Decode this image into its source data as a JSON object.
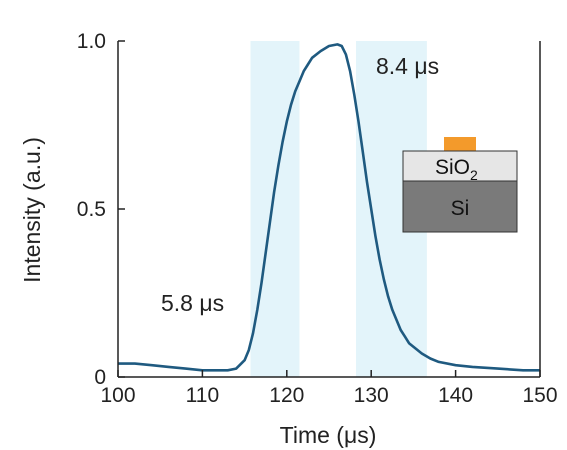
{
  "chart_data": {
    "type": "line",
    "title": "",
    "xlabel": "Time (μs)",
    "ylabel": "Intensity (a.u.)",
    "xlim": [
      100,
      150
    ],
    "ylim": [
      0,
      1.0
    ],
    "xticks": [
      100,
      110,
      120,
      130,
      140,
      150
    ],
    "xtick_labels": [
      "100",
      "110",
      "120",
      "130",
      "140",
      "150"
    ],
    "yticks": [
      0,
      0.5,
      1.0
    ],
    "ytick_labels": [
      "0",
      "0.5",
      "1.0"
    ],
    "grid": false,
    "legend": "none",
    "series": [
      {
        "color": "#1f5a80",
        "x": [
          100,
          102,
          104,
          106,
          108,
          110,
          112,
          113,
          114,
          115,
          115.5,
          116,
          116.5,
          117,
          117.5,
          118,
          118.5,
          119,
          119.5,
          120,
          120.5,
          121,
          121.5,
          122,
          122.5,
          123,
          124,
          125,
          126,
          126.5,
          127,
          127.5,
          128,
          128.5,
          129,
          129.5,
          130,
          130.5,
          131,
          131.5,
          132,
          132.5,
          133,
          133.5,
          134,
          134.5,
          135,
          136,
          137,
          138,
          140,
          142,
          145,
          148,
          150
        ],
        "y": [
          0.04,
          0.04,
          0.035,
          0.03,
          0.025,
          0.02,
          0.02,
          0.02,
          0.025,
          0.05,
          0.08,
          0.13,
          0.2,
          0.28,
          0.37,
          0.46,
          0.55,
          0.63,
          0.7,
          0.76,
          0.81,
          0.85,
          0.88,
          0.91,
          0.93,
          0.95,
          0.97,
          0.985,
          0.99,
          0.985,
          0.96,
          0.91,
          0.84,
          0.76,
          0.67,
          0.58,
          0.5,
          0.42,
          0.35,
          0.29,
          0.24,
          0.2,
          0.17,
          0.14,
          0.12,
          0.1,
          0.09,
          0.07,
          0.055,
          0.045,
          0.035,
          0.03,
          0.025,
          0.02,
          0.02
        ]
      }
    ],
    "shaded_regions": [
      {
        "x_start": 115.7,
        "x_end": 121.5,
        "color": "#e3f4fa"
      },
      {
        "x_start": 128.2,
        "x_end": 136.6,
        "color": "#e3f4fa"
      }
    ]
  },
  "annotations": {
    "rise_label": "5.8 μs",
    "fall_label": "8.4 μs"
  },
  "inset": {
    "layer_top_label": "SiO",
    "layer_top_subscript": "2",
    "layer_bottom_label": "Si",
    "electrode_color": "#f39a2b",
    "sio2_color": "#e6e6e6",
    "si_color": "#7a7a7a"
  }
}
